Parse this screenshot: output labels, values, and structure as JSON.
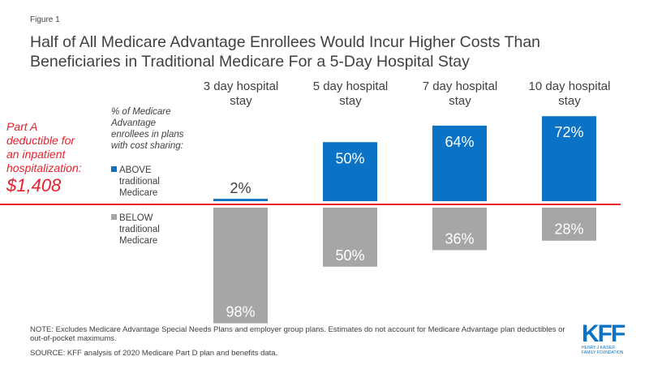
{
  "figure_label": "Figure 1",
  "title_line1": "Half of All Medicare Advantage Enrollees Would Incur Higher Costs Than",
  "title_line2": "Beneficiaries in Traditional Medicare For a 5-Day Hospital Stay",
  "deductible": {
    "line1": "Part A",
    "line2": "deductible for",
    "line3": "an inpatient",
    "line4": "hospitalization:",
    "amount": "$1,408"
  },
  "legend": {
    "heading_lines": [
      "% of Medicare",
      "Advantage",
      "enrollees in plans",
      "with cost sharing:"
    ],
    "above": {
      "line1": "ABOVE",
      "line2": "traditional",
      "line3": "Medicare"
    },
    "below": {
      "line1": "BELOW",
      "line2": "traditional",
      "line3": "Medicare"
    }
  },
  "colors": {
    "above": "#0a73c6",
    "below": "#a6a6a6",
    "reference_line": "#e8202e"
  },
  "chart_data": {
    "type": "bar",
    "title": "Half of All Medicare Advantage Enrollees Would Incur Higher Costs Than Beneficiaries in Traditional Medicare For a 5-Day Hospital Stay",
    "categories": [
      {
        "line1": "3 day hospital",
        "line2": "stay"
      },
      {
        "line1": "5 day hospital",
        "line2": "stay"
      },
      {
        "line1": "7 day hospital",
        "line2": "stay"
      },
      {
        "line1": "10 day hospital",
        "line2": "stay"
      }
    ],
    "series": [
      {
        "name": "ABOVE traditional Medicare",
        "values": [
          2,
          50,
          64,
          72
        ],
        "labels": [
          "2%",
          "50%",
          "64%",
          "72%"
        ]
      },
      {
        "name": "BELOW traditional Medicare",
        "values": [
          98,
          50,
          36,
          28
        ],
        "labels": [
          "98%",
          "50%",
          "36%",
          "28%"
        ]
      }
    ],
    "reference_line": "Part A deductible for an inpatient hospitalization: $1,408",
    "xlabel": "",
    "ylabel": "",
    "ylim": [
      0,
      100
    ],
    "grid": false,
    "legend": "left"
  },
  "note": "NOTE: Excludes Medicare Advantage Special Needs Plans and employer group plans. Estimates do not account for Medicare Advantage plan deductibles or out-of-pocket maximums.",
  "source": "SOURCE: KFF analysis of 2020 Medicare Part D plan and benefits data.",
  "logo": {
    "main": "KFF",
    "sub1": "HENRY J KAISER",
    "sub2": "FAMILY FOUNDATION"
  }
}
